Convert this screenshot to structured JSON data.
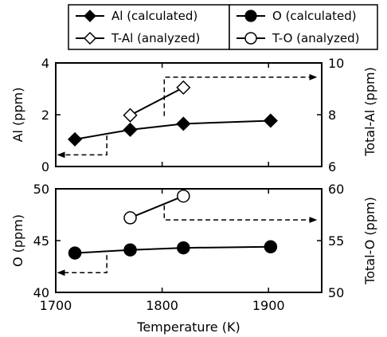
{
  "chart_data": [
    {
      "type": "line",
      "panel": "top",
      "xlabel": "",
      "ylabel": "Al (ppm)",
      "y2label": "Total-Al (ppm)",
      "xlim": [
        1700,
        1950
      ],
      "ylim": [
        0,
        4
      ],
      "y2lim": [
        6,
        10
      ],
      "xticks": [
        "1700",
        "1800",
        "1900"
      ],
      "yticks": [
        "0",
        "2",
        "4"
      ],
      "y2ticks": [
        "6",
        "8",
        "10"
      ],
      "series": [
        {
          "name": "Al (calculated)",
          "axis": "left",
          "marker": "filled-diamond",
          "x": [
            1718,
            1770,
            1820,
            1902
          ],
          "y": [
            1.05,
            1.42,
            1.65,
            1.77
          ]
        },
        {
          "name": "T-Al (analyzed)",
          "axis": "right",
          "marker": "open-diamond",
          "x": [
            1770,
            1820
          ],
          "y": [
            7.98,
            9.05
          ]
        }
      ],
      "guides": [
        {
          "points": [
            [
              1748,
              1.2
            ],
            [
              1748,
              0.45
            ],
            [
              1702,
              0.45
            ]
          ],
          "axis": "left",
          "arrow": "left"
        },
        {
          "points": [
            [
              1802,
              7.95
            ],
            [
              1802,
              9.45
            ],
            [
              1945,
              9.45
            ]
          ],
          "axis": "right",
          "arrow": "right"
        }
      ]
    },
    {
      "type": "line",
      "panel": "bottom",
      "xlabel": "Temperature (K)",
      "ylabel": "O (ppm)",
      "y2label": "Total-O (ppm)",
      "xlim": [
        1700,
        1950
      ],
      "ylim": [
        40,
        50
      ],
      "y2lim": [
        50,
        60
      ],
      "xticks": [
        "1700",
        "1800",
        "1900"
      ],
      "yticks": [
        "40",
        "45",
        "50"
      ],
      "y2ticks": [
        "50",
        "55",
        "60"
      ],
      "series": [
        {
          "name": "O (calculated)",
          "axis": "left",
          "marker": "filled-circle",
          "x": [
            1718,
            1770,
            1820,
            1902
          ],
          "y": [
            43.8,
            44.1,
            44.3,
            44.4
          ]
        },
        {
          "name": "T-O (analyzed)",
          "axis": "right",
          "marker": "open-circle",
          "x": [
            1770,
            1820
          ],
          "y": [
            57.2,
            59.3
          ]
        }
      ],
      "guides": [
        {
          "points": [
            [
              1748,
              43.6
            ],
            [
              1748,
              41.9
            ],
            [
              1702,
              41.9
            ]
          ],
          "axis": "left",
          "arrow": "left"
        },
        {
          "points": [
            [
              1802,
              58.4
            ],
            [
              1802,
              57.0
            ],
            [
              1945,
              57.0
            ]
          ],
          "axis": "right",
          "arrow": "right"
        }
      ]
    }
  ]
}
